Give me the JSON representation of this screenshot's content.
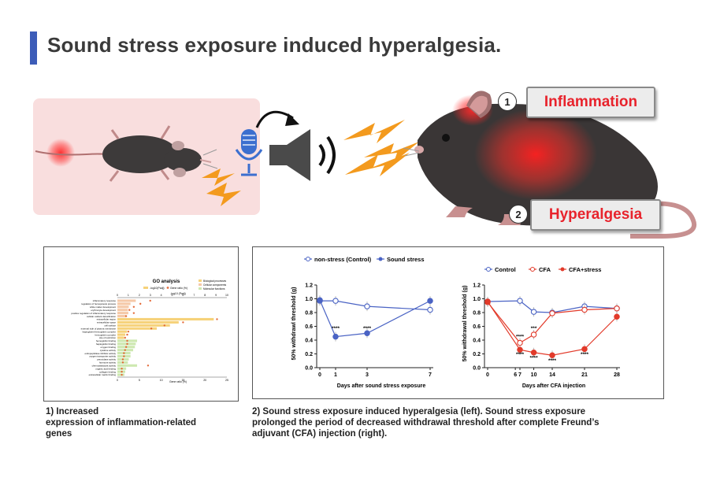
{
  "title": "Sound stress exposure induced hyperalgesia.",
  "labels": {
    "inflammation": "Inflammation",
    "hyperalgesia": "Hyperalgesia",
    "num1": "1",
    "num2": "2"
  },
  "colors": {
    "accent_blue": "#3c5cb8",
    "callout_red": "#e8232c",
    "lightning": "#f39a1e",
    "control_blue": "#4a63c4",
    "cfa_red": "#e23a2a"
  },
  "captions": {
    "left": [
      "1)  Increased",
      "expression of inflammation-related",
      "genes"
    ],
    "right": [
      "2) Sound stress exposure induced hyperalgesia (left). Sound stress exposure",
      "prolonged the period of decreased withdrawal threshold after complete Freund’s",
      "adjuvant (CFA) injection (right)."
    ]
  },
  "chart_data": [
    {
      "type": "line",
      "title": "",
      "xlabel": "Days after sound stress exposure",
      "ylabel": "50% withdrawl threshold (g)",
      "x_ticks": [
        0,
        1,
        3,
        7
      ],
      "y_ticks": [
        "0.0",
        "0.2",
        "0.4",
        "0.6",
        "0.8",
        "1.0",
        "1.2"
      ],
      "ylim": [
        0,
        1.2
      ],
      "legend_position": "top",
      "series": [
        {
          "name": "non-stress (Control)",
          "marker": "open-circle",
          "color": "#4a63c4",
          "x": [
            0,
            1,
            3,
            7
          ],
          "y": [
            0.97,
            0.97,
            0.89,
            0.84
          ]
        },
        {
          "name": "Sound stress",
          "marker": "filled-circle",
          "color": "#4a63c4",
          "x": [
            0,
            1,
            3,
            7
          ],
          "y": [
            0.98,
            0.45,
            0.5,
            0.97
          ]
        }
      ],
      "annotations": [
        {
          "x": 1,
          "y": 0.55,
          "text": "****"
        },
        {
          "x": 3,
          "y": 0.55,
          "text": "****"
        }
      ]
    },
    {
      "type": "line",
      "title": "",
      "xlabel": "Days after CFA injection",
      "ylabel": "50% withdrawal threshold (g)",
      "x_ticks": [
        0,
        6,
        7,
        10,
        14,
        21,
        28
      ],
      "x_tick_labels": [
        "0",
        "6",
        "7",
        "10",
        "14",
        "21",
        "28"
      ],
      "y_ticks": [
        "0.0",
        "0.2",
        "0.4",
        "0.6",
        "0.8",
        "1.0",
        "1.2"
      ],
      "ylim": [
        0,
        1.2
      ],
      "legend_position": "top",
      "series": [
        {
          "name": "Control",
          "marker": "open-circle",
          "color": "#4a63c4",
          "x": [
            0,
            7,
            10,
            14,
            21,
            28
          ],
          "y": [
            0.96,
            0.97,
            0.81,
            0.8,
            0.89,
            0.86
          ]
        },
        {
          "name": "CFA",
          "marker": "open-circle",
          "color": "#e23a2a",
          "x": [
            0,
            7,
            10,
            14,
            21,
            28
          ],
          "y": [
            0.95,
            0.36,
            0.48,
            0.79,
            0.84,
            0.86
          ]
        },
        {
          "name": "CFA+stress",
          "marker": "filled-circle",
          "color": "#e23a2a",
          "x": [
            0,
            7,
            10,
            14,
            21,
            28
          ],
          "y": [
            0.96,
            0.26,
            0.22,
            0.18,
            0.27,
            0.74
          ]
        }
      ],
      "annotations": [
        {
          "x": 7,
          "y": 0.43,
          "text": "****"
        },
        {
          "x": 10,
          "y": 0.55,
          "text": "***"
        },
        {
          "x": 7,
          "y": 0.17,
          "text": "****"
        },
        {
          "x": 10,
          "y": 0.12,
          "text": "****"
        },
        {
          "x": 14,
          "y": 0.08,
          "text": "****"
        },
        {
          "x": 21,
          "y": 0.17,
          "text": "****"
        }
      ]
    }
  ],
  "go_panel": {
    "title": "GO analysis",
    "legend_items": [
      "-log10(Padj)",
      "Gene ratio (%)"
    ],
    "category_legend": [
      "Biological processes",
      "Cellular components",
      "Molecular functions"
    ],
    "x_top_label": "-log10 (Padj)",
    "x_bottom_label": "Gene ratio (%)",
    "top_ticks": [
      "0",
      "1",
      "2",
      "3",
      "4",
      "5",
      "6",
      "7",
      "8",
      "9",
      "10"
    ],
    "bottom_ticks": [
      "0",
      "5",
      "10",
      "15",
      "20",
      "25"
    ],
    "terms": [
      {
        "term": "inflammatory response",
        "ratio": 4.2,
        "padj": 3.0,
        "cat": "bp"
      },
      {
        "term": "regulation of hemopoiesis process",
        "ratio": 3.0,
        "padj": 2.1,
        "cat": "bp"
      },
      {
        "term": "white matter development",
        "ratio": 2.6,
        "padj": 1.5,
        "cat": "bp"
      },
      {
        "term": "erythrocyte development",
        "ratio": 2.4,
        "padj": 1.1,
        "cat": "bp"
      },
      {
        "term": "positive regulation of inflammatory response",
        "ratio": 2.5,
        "padj": 1.5,
        "cat": "bp"
      },
      {
        "term": "cellular oxidant detoxification",
        "ratio": 2.0,
        "padj": 0.8,
        "cat": "bp"
      },
      {
        "term": "extracellular region",
        "ratio": 22.0,
        "padj": 9.1,
        "cat": "cc"
      },
      {
        "term": "extracellular space",
        "ratio": 14.0,
        "padj": 6.0,
        "cat": "cc"
      },
      {
        "term": "cell surface",
        "ratio": 12.0,
        "padj": 4.3,
        "cat": "cc"
      },
      {
        "term": "external side of plasma membrane",
        "ratio": 9.0,
        "padj": 3.1,
        "cat": "cc"
      },
      {
        "term": "haptoglobin-hemoglobin complex",
        "ratio": 2.2,
        "padj": 1.0,
        "cat": "cc"
      },
      {
        "term": "hemoglobin complex",
        "ratio": 1.8,
        "padj": 0.9,
        "cat": "cc"
      },
      {
        "term": "site of restriction",
        "ratio": 1.5,
        "padj": 0.7,
        "cat": "cc"
      },
      {
        "term": "hemoglobin binding",
        "ratio": 4.5,
        "padj": 0.9,
        "cat": "mf"
      },
      {
        "term": "haptoglobin binding",
        "ratio": 4.2,
        "padj": 0.9,
        "cat": "mf"
      },
      {
        "term": "oxygen binding",
        "ratio": 4.0,
        "padj": 0.8,
        "cat": "mf"
      },
      {
        "term": "cytokine activity",
        "ratio": 3.6,
        "padj": 0.7,
        "cat": "mf"
      },
      {
        "term": "endopeptidase inhibitor activity",
        "ratio": 3.0,
        "padj": 0.6,
        "cat": "mf"
      },
      {
        "term": "oxygen transporter activity",
        "ratio": 3.0,
        "padj": 0.6,
        "cat": "mf"
      },
      {
        "term": "peroxidase activity",
        "ratio": 2.6,
        "padj": 0.5,
        "cat": "mf"
      },
      {
        "term": "hormone activity",
        "ratio": 2.4,
        "padj": 0.5,
        "cat": "mf"
      },
      {
        "term": "chemoattractant activity",
        "ratio": 4.5,
        "padj": 2.8,
        "cat": "mf"
      },
      {
        "term": "organic acid binding",
        "ratio": 2.0,
        "padj": 0.4,
        "cat": "mf"
      },
      {
        "term": "collagen binding",
        "ratio": 1.8,
        "padj": 0.4,
        "cat": "mf"
      },
      {
        "term": "extracellular matrix binding",
        "ratio": 1.6,
        "padj": 0.4,
        "cat": "mf"
      }
    ]
  }
}
